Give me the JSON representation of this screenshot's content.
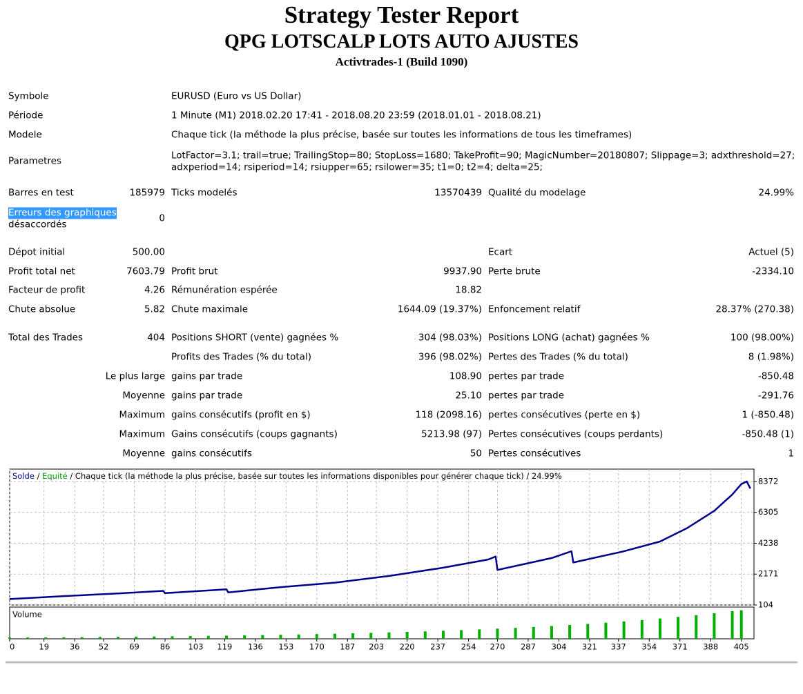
{
  "header": {
    "title": "Strategy Tester Report",
    "subtitle": "QPG LOTSCALP LOTS AUTO AJUSTES",
    "build": "Activtrades-1 (Build 1090)"
  },
  "info": [
    {
      "label": "Symbole",
      "value": [
        "EURUSD (Euro vs US Dollar)"
      ]
    },
    {
      "label": "Période",
      "value": [
        "1 Minute (M1) 2018.02.20 17:41 - 2018.08.20 23:59 (2018.01.01 - 2018.08.21)"
      ]
    },
    {
      "label": "Modele",
      "value": [
        "Chaque tick (la méthode la plus précise, basée sur toutes les informations de tous les timeframes)"
      ]
    },
    {
      "label": "Parametres",
      "value": [
        "LotFactor=3.1; trail=true; TrailingStop=80; StopLoss=1680; TakeProfit=90; MagicNumber=20180807; Slippage=3; adxthreshold=27;",
        "adxperiod=14; rsiperiod=14; rsiupper=65; rsilower=35; t1=0; t2=4; delta=25;"
      ]
    }
  ],
  "stats": [
    [
      "Barres en test",
      "185979",
      "Ticks modelés",
      "13570439",
      "Qualité du modelage",
      "24.99%"
    ],
    [
      [
        "Erreurs des graphiques",
        "désaccordés"
      ],
      "0",
      null,
      null,
      null,
      null
    ],
    [
      "Dépot initial",
      "500.00",
      null,
      null,
      "Ecart",
      "Actuel (5)"
    ],
    [
      "Profit total net",
      "7603.79",
      "Profit brut",
      "9937.90",
      "Perte brute",
      "-2334.10"
    ],
    [
      "Facteur de profit",
      "4.26",
      "Rémunération espérée",
      "18.82",
      null,
      null
    ],
    [
      "Chute absolue",
      "5.82",
      "Chute maximale",
      "1644.09 (19.37%)",
      "Enfoncement relatif",
      "28.37% (270.38)"
    ],
    [
      "Total des Trades",
      "404",
      "Positions SHORT (vente) gagnées %",
      "304 (98.03%)",
      "Positions LONG (achat) gagnées %",
      "100 (98.00%)"
    ],
    [
      null,
      null,
      "Profits des Trades (% du total)",
      "396 (98.02%)",
      "Pertes des Trades (% du total)",
      "8 (1.98%)"
    ],
    [
      null,
      "Le plus large",
      "gains par trade",
      "108.90",
      "pertes par trade",
      "-850.48"
    ],
    [
      null,
      "Moyenne",
      "gains par trade",
      "25.10",
      "pertes par trade",
      "-291.76"
    ],
    [
      null,
      "Maximum",
      "gains consécutifs (profit en $)",
      "118 (2098.16)",
      "pertes consécutives (perte en $)",
      "1 (-850.48)"
    ],
    [
      null,
      "Maximum",
      "Gains consécutifs (coups gagnants)",
      "5213.98 (97)",
      "Pertes consécutives (coups perdants)",
      "-850.48 (1)"
    ],
    [
      null,
      "Moyenne",
      "gains consécutifs",
      "50",
      "Pertes consécutives",
      "1"
    ]
  ],
  "chart_data": {
    "type": "line",
    "caption": "/ Chaque tick (la méthode la plus précise, basée sur toutes les informations disponibles pour générer chaque tick) / 24.99%",
    "legend_separator": "/",
    "series": [
      {
        "name": "Solde",
        "color": "#00008b",
        "x": [
          0,
          30,
          60,
          85,
          86,
          120,
          121,
          150,
          180,
          210,
          240,
          265,
          269,
          270,
          300,
          311,
          312,
          340,
          360,
          375,
          390,
          400,
          405,
          408,
          410
        ],
        "values": [
          500,
          700,
          880,
          1050,
          900,
          1150,
          950,
          1300,
          1600,
          2050,
          2600,
          3150,
          3350,
          2450,
          3250,
          3700,
          2950,
          3700,
          4350,
          5250,
          6400,
          7500,
          8200,
          8372,
          7900
        ]
      },
      {
        "name": "Equité",
        "color": "#00a000"
      }
    ],
    "xlim": [
      0,
      412
    ],
    "ylim": [
      104,
      9200
    ],
    "xticks": [
      0,
      19,
      36,
      52,
      69,
      86,
      103,
      119,
      136,
      153,
      170,
      187,
      203,
      220,
      237,
      254,
      270,
      287,
      304,
      321,
      337,
      354,
      371,
      388,
      405
    ],
    "yticks": [
      104,
      2171,
      4238,
      6305,
      8372
    ],
    "grid": true,
    "volume": {
      "name": "Volume",
      "color": "#00b000",
      "ylim": [
        0,
        1
      ],
      "x": [
        0,
        10,
        20,
        30,
        40,
        50,
        60,
        70,
        80,
        90,
        100,
        110,
        120,
        130,
        140,
        150,
        160,
        170,
        180,
        190,
        200,
        210,
        220,
        230,
        240,
        250,
        260,
        270,
        280,
        290,
        300,
        310,
        320,
        330,
        340,
        350,
        360,
        370,
        380,
        390,
        400,
        405
      ],
      "values": [
        0.04,
        0.043,
        0.047,
        0.05,
        0.054,
        0.059,
        0.063,
        0.069,
        0.074,
        0.08,
        0.086,
        0.093,
        0.1,
        0.109,
        0.117,
        0.127,
        0.137,
        0.148,
        0.16,
        0.173,
        0.186,
        0.201,
        0.217,
        0.235,
        0.254,
        0.274,
        0.296,
        0.32,
        0.345,
        0.373,
        0.403,
        0.435,
        0.47,
        0.508,
        0.548,
        0.592,
        0.64,
        0.691,
        0.746,
        0.806,
        0.871,
        0.9
      ]
    }
  }
}
